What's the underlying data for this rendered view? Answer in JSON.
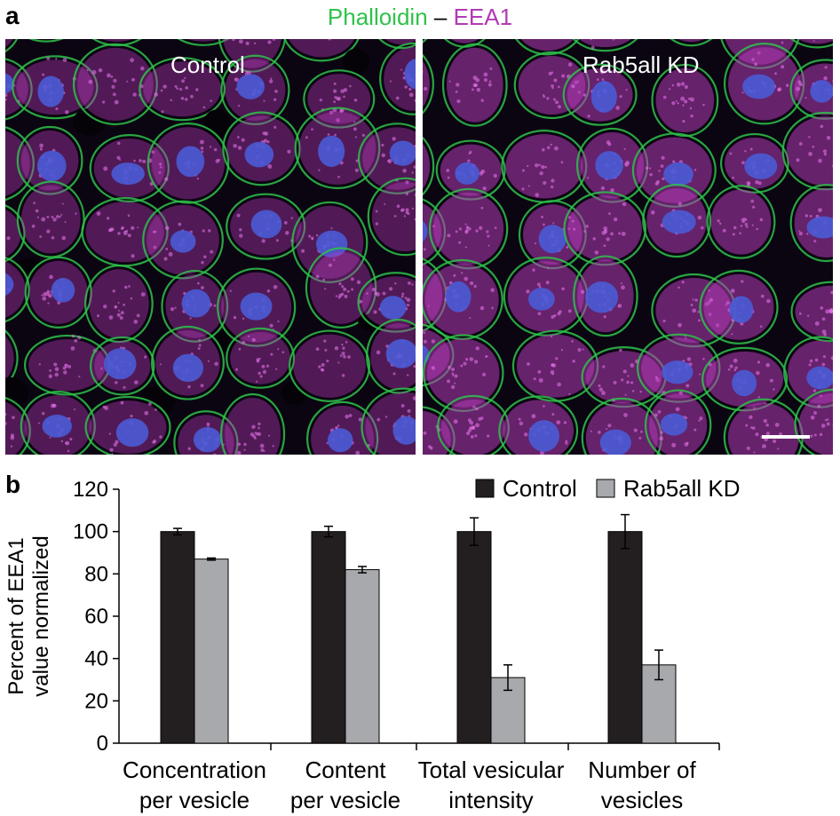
{
  "panel_a": {
    "letter": "a",
    "title": {
      "stain1": "Phalloidin",
      "sep": " – ",
      "stain2": "EEA1"
    },
    "colors": {
      "stain1": "#2fc24a",
      "stain2": "#b23ab5",
      "nucleus": "#4a5bd6"
    },
    "images": [
      {
        "label": "Control"
      },
      {
        "label": "Rab5all KD"
      }
    ]
  },
  "panel_b": {
    "letter": "b"
  },
  "chart_data": {
    "type": "bar",
    "categories": [
      [
        "Concentration",
        "per vesicle"
      ],
      [
        "Content",
        "per vesicle"
      ],
      [
        "Total vesicular",
        "intensity"
      ],
      [
        "Number of",
        "vesicles"
      ]
    ],
    "series": [
      {
        "name": "Control",
        "values": [
          100,
          100,
          100,
          100
        ],
        "errors": [
          1.5,
          2.5,
          6.5,
          8
        ],
        "color": "#231f20"
      },
      {
        "name": "Rab5all KD",
        "values": [
          87,
          82,
          31,
          37
        ],
        "errors": [
          0.5,
          1.5,
          6,
          7
        ],
        "color": "#a7a9ac"
      }
    ],
    "ylabel": [
      "Percent of EEA1",
      "value normalized"
    ],
    "xlabel": "",
    "ylim": [
      0,
      120
    ],
    "yticks": [
      0,
      20,
      40,
      60,
      80,
      100,
      120
    ],
    "legend": "top-right",
    "grid": false
  }
}
